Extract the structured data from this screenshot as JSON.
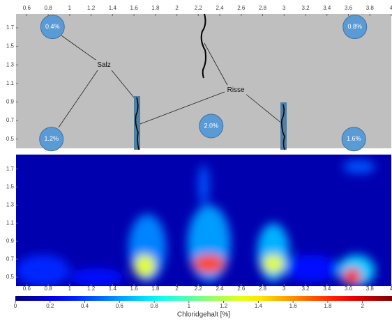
{
  "chart_data": [
    {
      "type": "schematic",
      "xlim": [
        0.5,
        4.0
      ],
      "ylim": [
        0.4,
        1.85
      ],
      "xticks": [
        0.6,
        0.8,
        1,
        1.2,
        1.4,
        1.6,
        1.8,
        2,
        2.2,
        2.4,
        2.6,
        2.8,
        3,
        3.2,
        3.4,
        3.6,
        3.8,
        4
      ],
      "yticks": [
        0.5,
        0.7,
        0.9,
        1.1,
        1.3,
        1.5,
        1.7
      ],
      "circles": [
        {
          "label": "0.4%",
          "x": 0.84,
          "y": 1.71
        },
        {
          "label": "0.8%",
          "x": 3.66,
          "y": 1.71
        },
        {
          "label": "1.2%",
          "x": 0.83,
          "y": 0.5
        },
        {
          "label": "2.0%",
          "x": 2.32,
          "y": 0.64
        },
        {
          "label": "1.6%",
          "x": 3.65,
          "y": 0.5
        }
      ],
      "annotations": [
        {
          "text": "Salz",
          "x": 1.32,
          "y": 1.3
        },
        {
          "text": "Risse",
          "x": 2.55,
          "y": 1.03
        }
      ],
      "color": "#5b9bd5"
    },
    {
      "type": "heatmap",
      "xlim": [
        0.5,
        4.0
      ],
      "ylim": [
        0.4,
        1.86
      ],
      "xticks": [
        0.6,
        0.8,
        1,
        1.2,
        1.4,
        1.6,
        1.8,
        2,
        2.2,
        2.4,
        2.6,
        2.8,
        3,
        3.2,
        3.4,
        3.6,
        3.8,
        4
      ],
      "yticks": [
        0.5,
        0.7,
        0.9,
        1.1,
        1.3,
        1.5,
        1.7
      ],
      "background_value": 0.1,
      "hotspots": [
        {
          "x_range": [
            0.5,
            1.0
          ],
          "y_range": [
            0.4,
            0.75
          ],
          "value": 0.35
        },
        {
          "x_range": [
            1.0,
            1.5
          ],
          "y_range": [
            0.4,
            0.6
          ],
          "value": 0.3
        },
        {
          "x_range": [
            3.0,
            3.5
          ],
          "y_range": [
            0.45,
            0.75
          ],
          "value": 0.3
        },
        {
          "x_range": [
            3.55,
            3.85
          ],
          "y_range": [
            1.65,
            1.8
          ],
          "value": 0.45
        },
        {
          "x_range": [
            1.55,
            1.9
          ],
          "y_range": [
            0.45,
            1.2
          ],
          "value": 0.55
        },
        {
          "x_range": [
            2.1,
            2.5
          ],
          "y_range": [
            0.45,
            1.3
          ],
          "value": 0.6
        },
        {
          "x_range": [
            2.2,
            2.3
          ],
          "y_range": [
            1.3,
            1.75
          ],
          "value": 0.45
        },
        {
          "x_range": [
            2.75,
            3.05
          ],
          "y_range": [
            0.45,
            1.1
          ],
          "value": 0.65
        },
        {
          "x_range": [
            3.5,
            3.85
          ],
          "y_range": [
            0.4,
            0.75
          ],
          "value": 0.7
        },
        {
          "x_range": [
            1.6,
            1.8
          ],
          "y_range": [
            0.5,
            0.75
          ],
          "value": 1.3
        },
        {
          "x_range": [
            2.8,
            3.0
          ],
          "y_range": [
            0.55,
            0.75
          ],
          "value": 1.3
        },
        {
          "x_range": [
            2.15,
            2.45
          ],
          "y_range": [
            0.55,
            0.75
          ],
          "value": 1.75
        },
        {
          "x_range": [
            3.55,
            3.72
          ],
          "y_range": [
            0.42,
            0.6
          ],
          "value": 1.9
        }
      ],
      "colorbar": {
        "label": "Chloridgehalt [%]",
        "clim": [
          0,
          2.17
        ],
        "ticks": [
          0,
          0.2,
          0.4,
          0.6,
          0.8,
          1,
          1.2,
          1.4,
          1.6,
          1.8,
          2
        ]
      }
    }
  ]
}
